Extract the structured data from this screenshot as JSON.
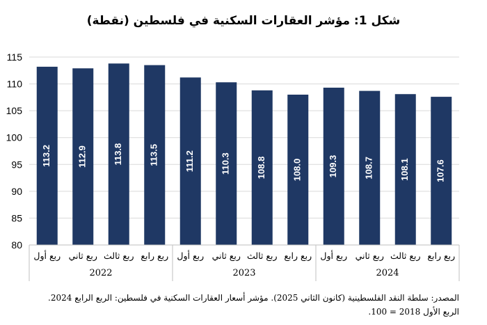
{
  "chart_data": {
    "type": "bar",
    "title": "شكل 1: مؤشر العقارات السكنية في فلسطين (نقطة)",
    "categories": [
      "ربع أول",
      "ربع ثاني",
      "ربع ثالث",
      "ربع رابع",
      "ربع أول",
      "ربع ثاني",
      "ربع ثالث",
      "ربع رابع",
      "ربع أول",
      "ربع ثاني",
      "ربع ثالث",
      "ربع رابع"
    ],
    "groups": [
      {
        "label": "2022",
        "count": 4
      },
      {
        "label": "2023",
        "count": 4
      },
      {
        "label": "2024",
        "count": 4
      }
    ],
    "values": [
      113.2,
      112.9,
      113.8,
      113.5,
      111.2,
      110.3,
      108.8,
      108.0,
      109.3,
      108.7,
      108.1,
      107.6
    ],
    "value_labels": [
      "113.2",
      "112.9",
      "113.8",
      "113.5",
      "111.2",
      "110.3",
      "108.8",
      "108.0",
      "109.3",
      "108.7",
      "108.1",
      "107.6"
    ],
    "ylim": [
      80,
      115
    ],
    "yticks": [
      80,
      85,
      90,
      95,
      100,
      105,
      110,
      115
    ],
    "bar_color": "#1f3864",
    "label_color": "#ffffff",
    "grid": true,
    "legend": "none"
  },
  "source": {
    "line1": "المصدر: سلطة النقد الفلسطينية (كانون الثاني 2025). مؤشر أسعار العقارات السكنية في فلسطين: الربع الرابع 2024.",
    "line2": "الربع الأول 2018 = 100."
  }
}
